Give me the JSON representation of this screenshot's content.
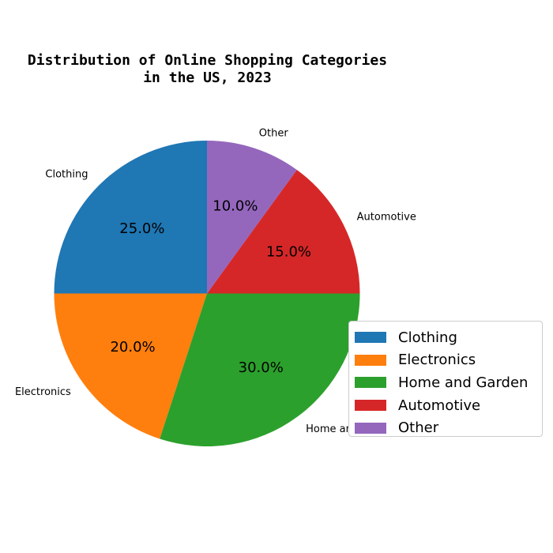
{
  "chart_data": {
    "type": "pie",
    "title": "Distribution of Online Shopping Categories\nin the US, 2023",
    "categories": [
      "Clothing",
      "Electronics",
      "Home and Garden",
      "Automotive",
      "Other"
    ],
    "values": [
      25.0,
      20.0,
      30.0,
      15.0,
      10.0
    ],
    "percent_labels": [
      "25.0%",
      "20.0%",
      "30.0%",
      "15.0%",
      "10.0%"
    ],
    "colors": [
      "#1f77b4",
      "#ff7f0e",
      "#2ca02c",
      "#d62728",
      "#9467bd"
    ],
    "start_angle_deg": 90,
    "direction": "counterclockwise",
    "legend": {
      "placement": "right",
      "entries": [
        "Clothing",
        "Electronics",
        "Home and Garden",
        "Automotive",
        "Other"
      ]
    }
  }
}
